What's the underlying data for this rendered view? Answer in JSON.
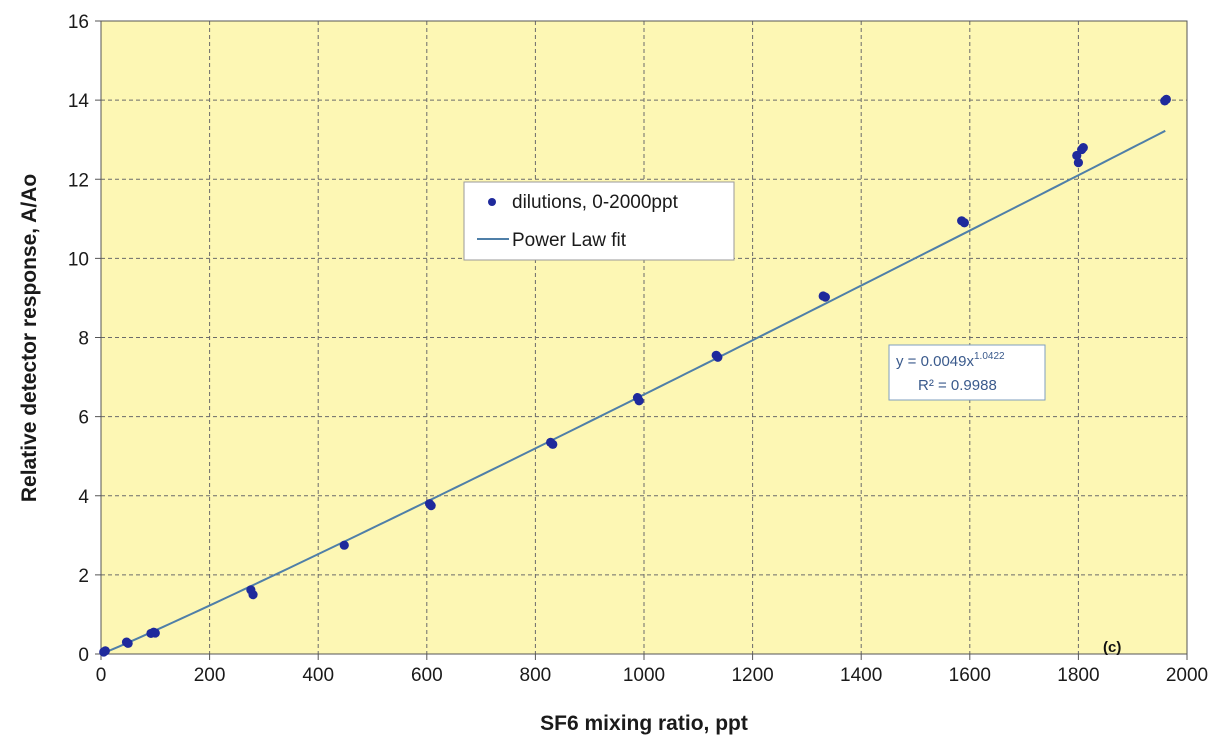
{
  "chart_data": {
    "type": "scatter",
    "xlabel": "SF6 mixing ratio, ppt",
    "ylabel": "Relative detector response, A/Ao",
    "xlim": [
      0,
      2000
    ],
    "ylim": [
      0,
      16
    ],
    "xticks": [
      "0",
      "200",
      "400",
      "600",
      "800",
      "1000",
      "1200",
      "1400",
      "1600",
      "1800",
      "2000"
    ],
    "yticks": [
      "0",
      "2",
      "4",
      "6",
      "8",
      "10",
      "12",
      "14",
      "16"
    ],
    "grid": true,
    "grid_style": "dashed",
    "plot_background": "#fdf7b4",
    "legend_position": "upper-left-center",
    "legend": [
      {
        "label": "dilutions, 0-2000ppt",
        "marker": "circle"
      },
      {
        "label": "Power Law fit",
        "marker": "line"
      }
    ],
    "series": [
      {
        "name": "dilutions, 0-2000ppt",
        "kind": "scatter",
        "color": "#1f2a9c",
        "points": [
          {
            "x": 5,
            "y": 0.05
          },
          {
            "x": 8,
            "y": 0.08
          },
          {
            "x": 47,
            "y": 0.3
          },
          {
            "x": 50,
            "y": 0.27
          },
          {
            "x": 92,
            "y": 0.52
          },
          {
            "x": 97,
            "y": 0.55
          },
          {
            "x": 100,
            "y": 0.53
          },
          {
            "x": 276,
            "y": 1.62
          },
          {
            "x": 280,
            "y": 1.5
          },
          {
            "x": 448,
            "y": 2.75
          },
          {
            "x": 605,
            "y": 3.8
          },
          {
            "x": 608,
            "y": 3.75
          },
          {
            "x": 828,
            "y": 5.35
          },
          {
            "x": 832,
            "y": 5.3
          },
          {
            "x": 988,
            "y": 6.48
          },
          {
            "x": 991,
            "y": 6.4
          },
          {
            "x": 1133,
            "y": 7.55
          },
          {
            "x": 1136,
            "y": 7.5
          },
          {
            "x": 1330,
            "y": 9.05
          },
          {
            "x": 1334,
            "y": 9.02
          },
          {
            "x": 1585,
            "y": 10.95
          },
          {
            "x": 1590,
            "y": 10.9
          },
          {
            "x": 1797,
            "y": 12.6
          },
          {
            "x": 1800,
            "y": 12.42
          },
          {
            "x": 1806,
            "y": 12.75
          },
          {
            "x": 1809,
            "y": 12.8
          },
          {
            "x": 1959,
            "y": 13.98
          },
          {
            "x": 1962,
            "y": 14.02
          }
        ]
      },
      {
        "name": "Power Law fit",
        "kind": "line",
        "color": "#4f7fa8",
        "equation": {
          "coefficient": 0.0049,
          "exponent": 1.0422
        },
        "x_range": [
          1,
          1960
        ]
      }
    ],
    "annotations": {
      "equation_prefix": "y = 0.0049x",
      "equation_exponent": "1.0422",
      "r_squared": "R² = 0.9988",
      "panel_label": "(c)"
    }
  }
}
